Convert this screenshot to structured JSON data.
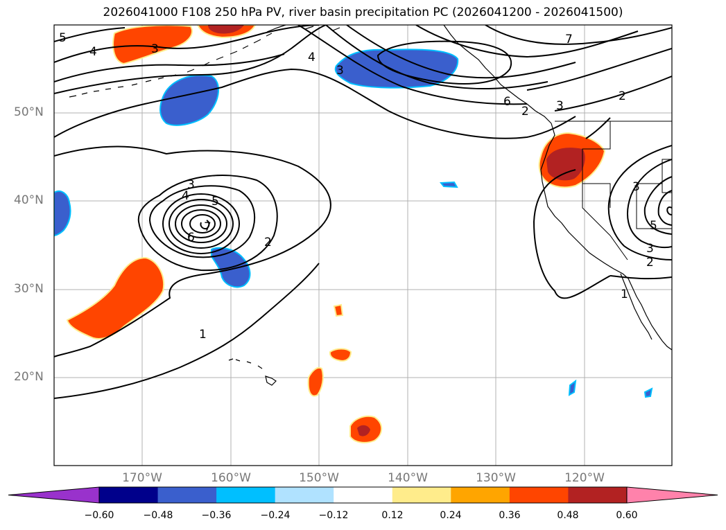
{
  "title": "2026041000 F108 250 hPa PV, river basin precipitation PC (2026041200 - 2026041500)",
  "lat_labels": [
    "50°N",
    "40°N",
    "30°N",
    "20°N"
  ],
  "lon_labels": [
    "170°W",
    "160°W",
    "150°W",
    "140°W",
    "130°W",
    "120°W"
  ],
  "contour_labels": [
    "5",
    "4",
    "3",
    "4",
    "3",
    "7",
    "6",
    "3",
    "2",
    "3",
    "4",
    "5",
    "6",
    "7",
    "2",
    "1",
    "2",
    "3",
    "5",
    "3",
    "2",
    "1"
  ],
  "colorbar": {
    "ticks": [
      "−0.60",
      "−0.48",
      "−0.36",
      "−0.24",
      "−0.12",
      "0.12",
      "0.24",
      "0.36",
      "0.48",
      "0.60"
    ],
    "colors": [
      "#9932cc",
      "#00008b",
      "#3a5fcd",
      "#00bfff",
      "#b0e2ff",
      "#ffffff",
      "#ffec8b",
      "#ffa500",
      "#ff4500",
      "#b22222",
      "#ff82ab"
    ]
  }
}
